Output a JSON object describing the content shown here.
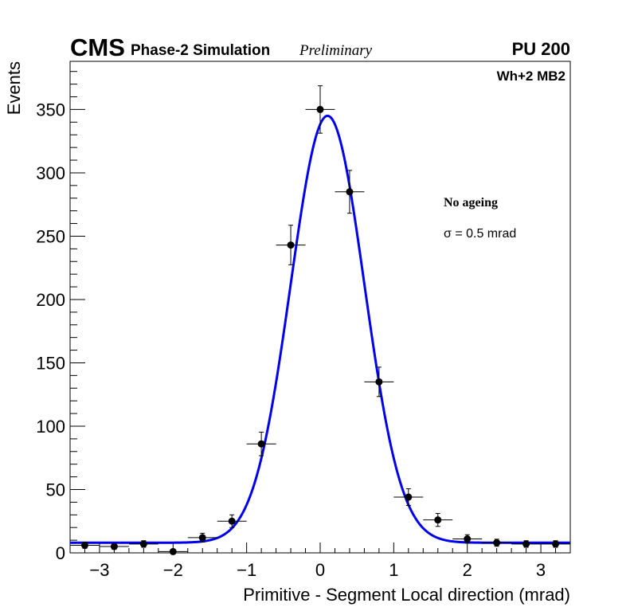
{
  "header": {
    "experiment": "CMS",
    "subtitle": "Phase-2 Simulation",
    "status": "Preliminary",
    "pileup": "PU 200",
    "chamber": "Wh+2 MB2"
  },
  "annotations": {
    "ageing": "No ageing",
    "sigma_symbol": "σ",
    "sigma_value": " = 0.5 mrad"
  },
  "chart_data": {
    "type": "scatter",
    "title": "",
    "xlabel": "Primitive - Segment Local direction (mrad)",
    "ylabel": "Events",
    "xlim": [
      -3.4,
      3.4
    ],
    "ylim": [
      0,
      388
    ],
    "x_ticks": [
      -3,
      -2,
      -1,
      0,
      1,
      2,
      3
    ],
    "x_tick_labels": [
      "−3",
      "−2",
      "−1",
      "0",
      "1",
      "2",
      "3"
    ],
    "y_ticks": [
      0,
      50,
      100,
      150,
      200,
      250,
      300,
      350
    ],
    "y_tick_labels": [
      "0",
      "50",
      "100",
      "150",
      "200",
      "250",
      "300",
      "350"
    ],
    "bin_half_width": 0.2,
    "series": [
      {
        "name": "Simulation",
        "type": "points-with-errors",
        "color": "#000000",
        "x": [
          -3.2,
          -2.8,
          -2.4,
          -2.0,
          -1.6,
          -1.2,
          -0.8,
          -0.4,
          0.0,
          0.4,
          0.8,
          1.2,
          1.6,
          2.0,
          2.4,
          2.8,
          3.2
        ],
        "y": [
          6,
          5,
          7,
          1,
          12,
          25,
          86,
          243,
          350,
          285,
          135,
          44,
          26,
          11,
          8,
          7,
          7
        ],
        "y_err": [
          2.4,
          2.2,
          2.6,
          1.0,
          3.5,
          5.0,
          9.3,
          15.6,
          18.7,
          16.9,
          11.6,
          6.6,
          5.1,
          3.3,
          2.8,
          2.6,
          2.6
        ]
      },
      {
        "name": "Gaussian fit",
        "type": "function",
        "color": "#0000ee",
        "function": "gaussian_plus_constant",
        "amplitude": 337,
        "mean": 0.1,
        "sigma": 0.5,
        "constant": 8
      }
    ]
  }
}
